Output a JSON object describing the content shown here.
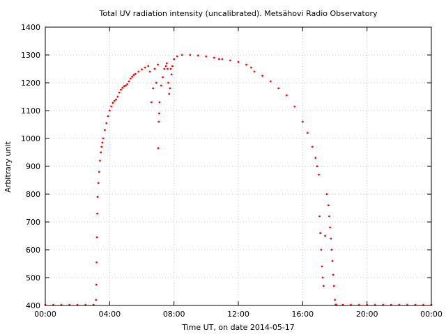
{
  "chart_data": {
    "type": "scatter",
    "title": "Total UV radiation intensity (uncalibrated). Metsähovi Radio Observatory",
    "xlabel": "Time UT, on date 2014-05-17",
    "ylabel": "Arbitrary unit",
    "xlim": [
      0,
      24
    ],
    "ylim": [
      400,
      1400
    ],
    "x_ticks": [
      0,
      4,
      8,
      12,
      16,
      20,
      24
    ],
    "x_tick_labels": [
      "00:00",
      "04:00",
      "08:00",
      "12:00",
      "16:00",
      "20:00",
      "00:00"
    ],
    "y_ticks": [
      400,
      500,
      600,
      700,
      800,
      900,
      1000,
      1100,
      1200,
      1300,
      1400
    ],
    "y_tick_labels": [
      "400",
      "500",
      "600",
      "700",
      "800",
      "900",
      "1000",
      "1100",
      "1200",
      "1300",
      "1400"
    ],
    "grid": true,
    "marker_color": "#ff0000",
    "series": [
      {
        "x": [
          0.0,
          0.5,
          1.0,
          1.5,
          2.0,
          2.5,
          3.0,
          3.15,
          3.17,
          3.19,
          3.21,
          3.23,
          3.25,
          3.3,
          3.35,
          3.4,
          3.45,
          3.5,
          3.55,
          3.6,
          3.7,
          3.8,
          3.9,
          4.0,
          4.1,
          4.2,
          4.3,
          4.4,
          4.5,
          4.6,
          4.7,
          4.8,
          4.9,
          5.0,
          5.1,
          5.2,
          5.3,
          5.4,
          5.5,
          5.6,
          5.8,
          6.0,
          6.2,
          6.4,
          6.5,
          6.6,
          6.7,
          6.8,
          6.9,
          7.0,
          7.02,
          7.05,
          7.08,
          7.1,
          7.2,
          7.3,
          7.4,
          7.5,
          7.55,
          7.6,
          7.65,
          7.7,
          7.75,
          7.8,
          7.85,
          7.9,
          8.0,
          8.2,
          8.5,
          9.0,
          9.5,
          10.0,
          10.5,
          10.8,
          11.0,
          11.5,
          12.0,
          12.5,
          12.8,
          13.0,
          13.5,
          14.0,
          14.5,
          15.0,
          15.5,
          16.0,
          16.3,
          16.6,
          16.8,
          16.9,
          17.0,
          17.05,
          17.1,
          17.15,
          17.2,
          17.25,
          17.3,
          17.4,
          17.5,
          17.6,
          17.65,
          17.7,
          17.75,
          17.8,
          17.85,
          17.9,
          17.95,
          18.0,
          18.05,
          18.1,
          18.5,
          19.0,
          19.5,
          20.0,
          20.5,
          21.0,
          21.5,
          22.0,
          22.5,
          23.0,
          23.5,
          24.0
        ],
        "y": [
          402,
          402,
          402,
          402,
          402,
          402,
          402,
          420,
          475,
          555,
          645,
          730,
          790,
          840,
          880,
          920,
          950,
          970,
          985,
          1000,
          1030,
          1055,
          1080,
          1100,
          1115,
          1128,
          1135,
          1140,
          1150,
          1165,
          1175,
          1182,
          1188,
          1190,
          1195,
          1205,
          1215,
          1222,
          1228,
          1232,
          1240,
          1248,
          1255,
          1260,
          1240,
          1130,
          1180,
          1250,
          1200,
          1265,
          965,
          1060,
          1090,
          1130,
          1190,
          1220,
          1250,
          1260,
          1270,
          1250,
          1200,
          1160,
          1180,
          1250,
          1230,
          1260,
          1285,
          1295,
          1300,
          1300,
          1298,
          1295,
          1290,
          1285,
          1285,
          1280,
          1275,
          1265,
          1255,
          1240,
          1225,
          1205,
          1180,
          1155,
          1115,
          1060,
          1020,
          970,
          930,
          900,
          870,
          720,
          660,
          600,
          540,
          500,
          470,
          650,
          800,
          760,
          720,
          680,
          640,
          600,
          560,
          510,
          470,
          420,
          403,
          402,
          402,
          402,
          402,
          402,
          402,
          402,
          402,
          402,
          402,
          402,
          402,
          402
        ]
      }
    ]
  }
}
